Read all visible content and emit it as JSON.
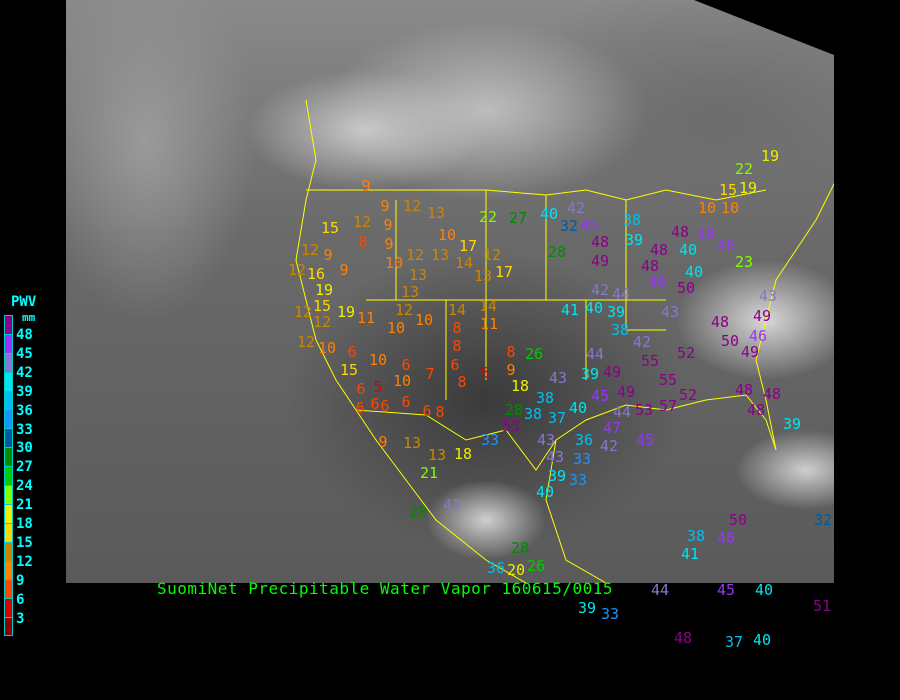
{
  "title": "SuomiNet Precipitable Water Vapor 160615/0015",
  "legend": {
    "title": "PWV",
    "unit": "mm",
    "labels": [
      "48",
      "45",
      "42",
      "39",
      "36",
      "33",
      "30",
      "27",
      "24",
      "21",
      "18",
      "15",
      "12",
      "9",
      "6",
      "3"
    ],
    "colors": [
      "#8b008b",
      "#9933ff",
      "#8877cc",
      "#00e5ee",
      "#00bfef",
      "#1e90ff",
      "#005a9c",
      "#008b00",
      "#00cd00",
      "#7fff00",
      "#eeee00",
      "#ffd700",
      "#cd8500",
      "#ff8000",
      "#ff4500",
      "#dd0000",
      "#8b0000"
    ]
  },
  "map": {
    "background": "GOES infrared satellite imagery, North America",
    "boundary_color": "#ffff00",
    "station_values": [
      9,
      9,
      12,
      13,
      12,
      9,
      15,
      8,
      9,
      10,
      17,
      22,
      27,
      40,
      42,
      32,
      45,
      48,
      49,
      38,
      39,
      28,
      12,
      9,
      16,
      9,
      12,
      19,
      10,
      12,
      13,
      14,
      12,
      13,
      17,
      13,
      13,
      15,
      19,
      12,
      12,
      11,
      12,
      10,
      10,
      14,
      14,
      8,
      11,
      8,
      41,
      40,
      39,
      38,
      42,
      44,
      42,
      10,
      12,
      6,
      10,
      15,
      6,
      5,
      10,
      6,
      7,
      6,
      8,
      5,
      8,
      26,
      9,
      18,
      44,
      43,
      39,
      49,
      38,
      40,
      38,
      28,
      53,
      37,
      45,
      44,
      47,
      36,
      42,
      43,
      43,
      33,
      33,
      39,
      40,
      33,
      9,
      13,
      13,
      18,
      21,
      8,
      45,
      55,
      52,
      55,
      49,
      53,
      57,
      52,
      50,
      46,
      43,
      48,
      48,
      48,
      40,
      46,
      46,
      40,
      48,
      50,
      49,
      46,
      49,
      43,
      48,
      48,
      48,
      39,
      10,
      10,
      15,
      19,
      22,
      19,
      23,
      46,
      50,
      38,
      41,
      44,
      45,
      40,
      39,
      33,
      28,
      26,
      20,
      36,
      43,
      28,
      32,
      51,
      48,
      40,
      37,
      6,
      6,
      6,
      6,
      6
    ]
  }
}
